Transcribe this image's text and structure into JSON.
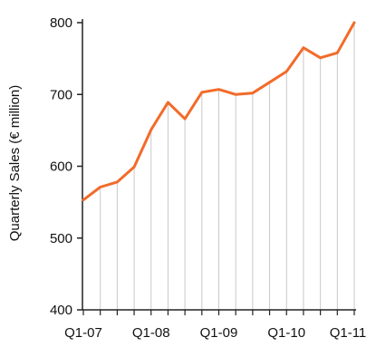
{
  "chart_data": {
    "type": "line",
    "title": "",
    "xlabel": "",
    "ylabel": "Quarterly Sales (€ million)",
    "ylim": [
      400,
      800
    ],
    "yticks": [
      "400",
      "500",
      "600",
      "700",
      "800"
    ],
    "xtick_labels": [
      "Q1-07",
      "Q1-08",
      "Q1-09",
      "Q1-10",
      "Q1-11"
    ],
    "x": [
      "Q1-07",
      "Q2-07",
      "Q3-07",
      "Q4-07",
      "Q1-08",
      "Q2-08",
      "Q3-08",
      "Q4-08",
      "Q1-09",
      "Q2-09",
      "Q3-09",
      "Q4-09",
      "Q1-10",
      "Q2-10",
      "Q3-10",
      "Q4-10",
      "Q1-11"
    ],
    "series": [
      {
        "values": [
          553,
          571,
          578,
          599,
          651,
          689,
          666,
          703,
          707,
          700,
          702,
          717,
          732,
          765,
          751,
          758,
          800
        ]
      }
    ],
    "grid": "vertical drop lines at each quarter",
    "colors": {
      "line": "#f26b2a",
      "droplines": "#c9c9c9",
      "axis": "#222222"
    }
  }
}
